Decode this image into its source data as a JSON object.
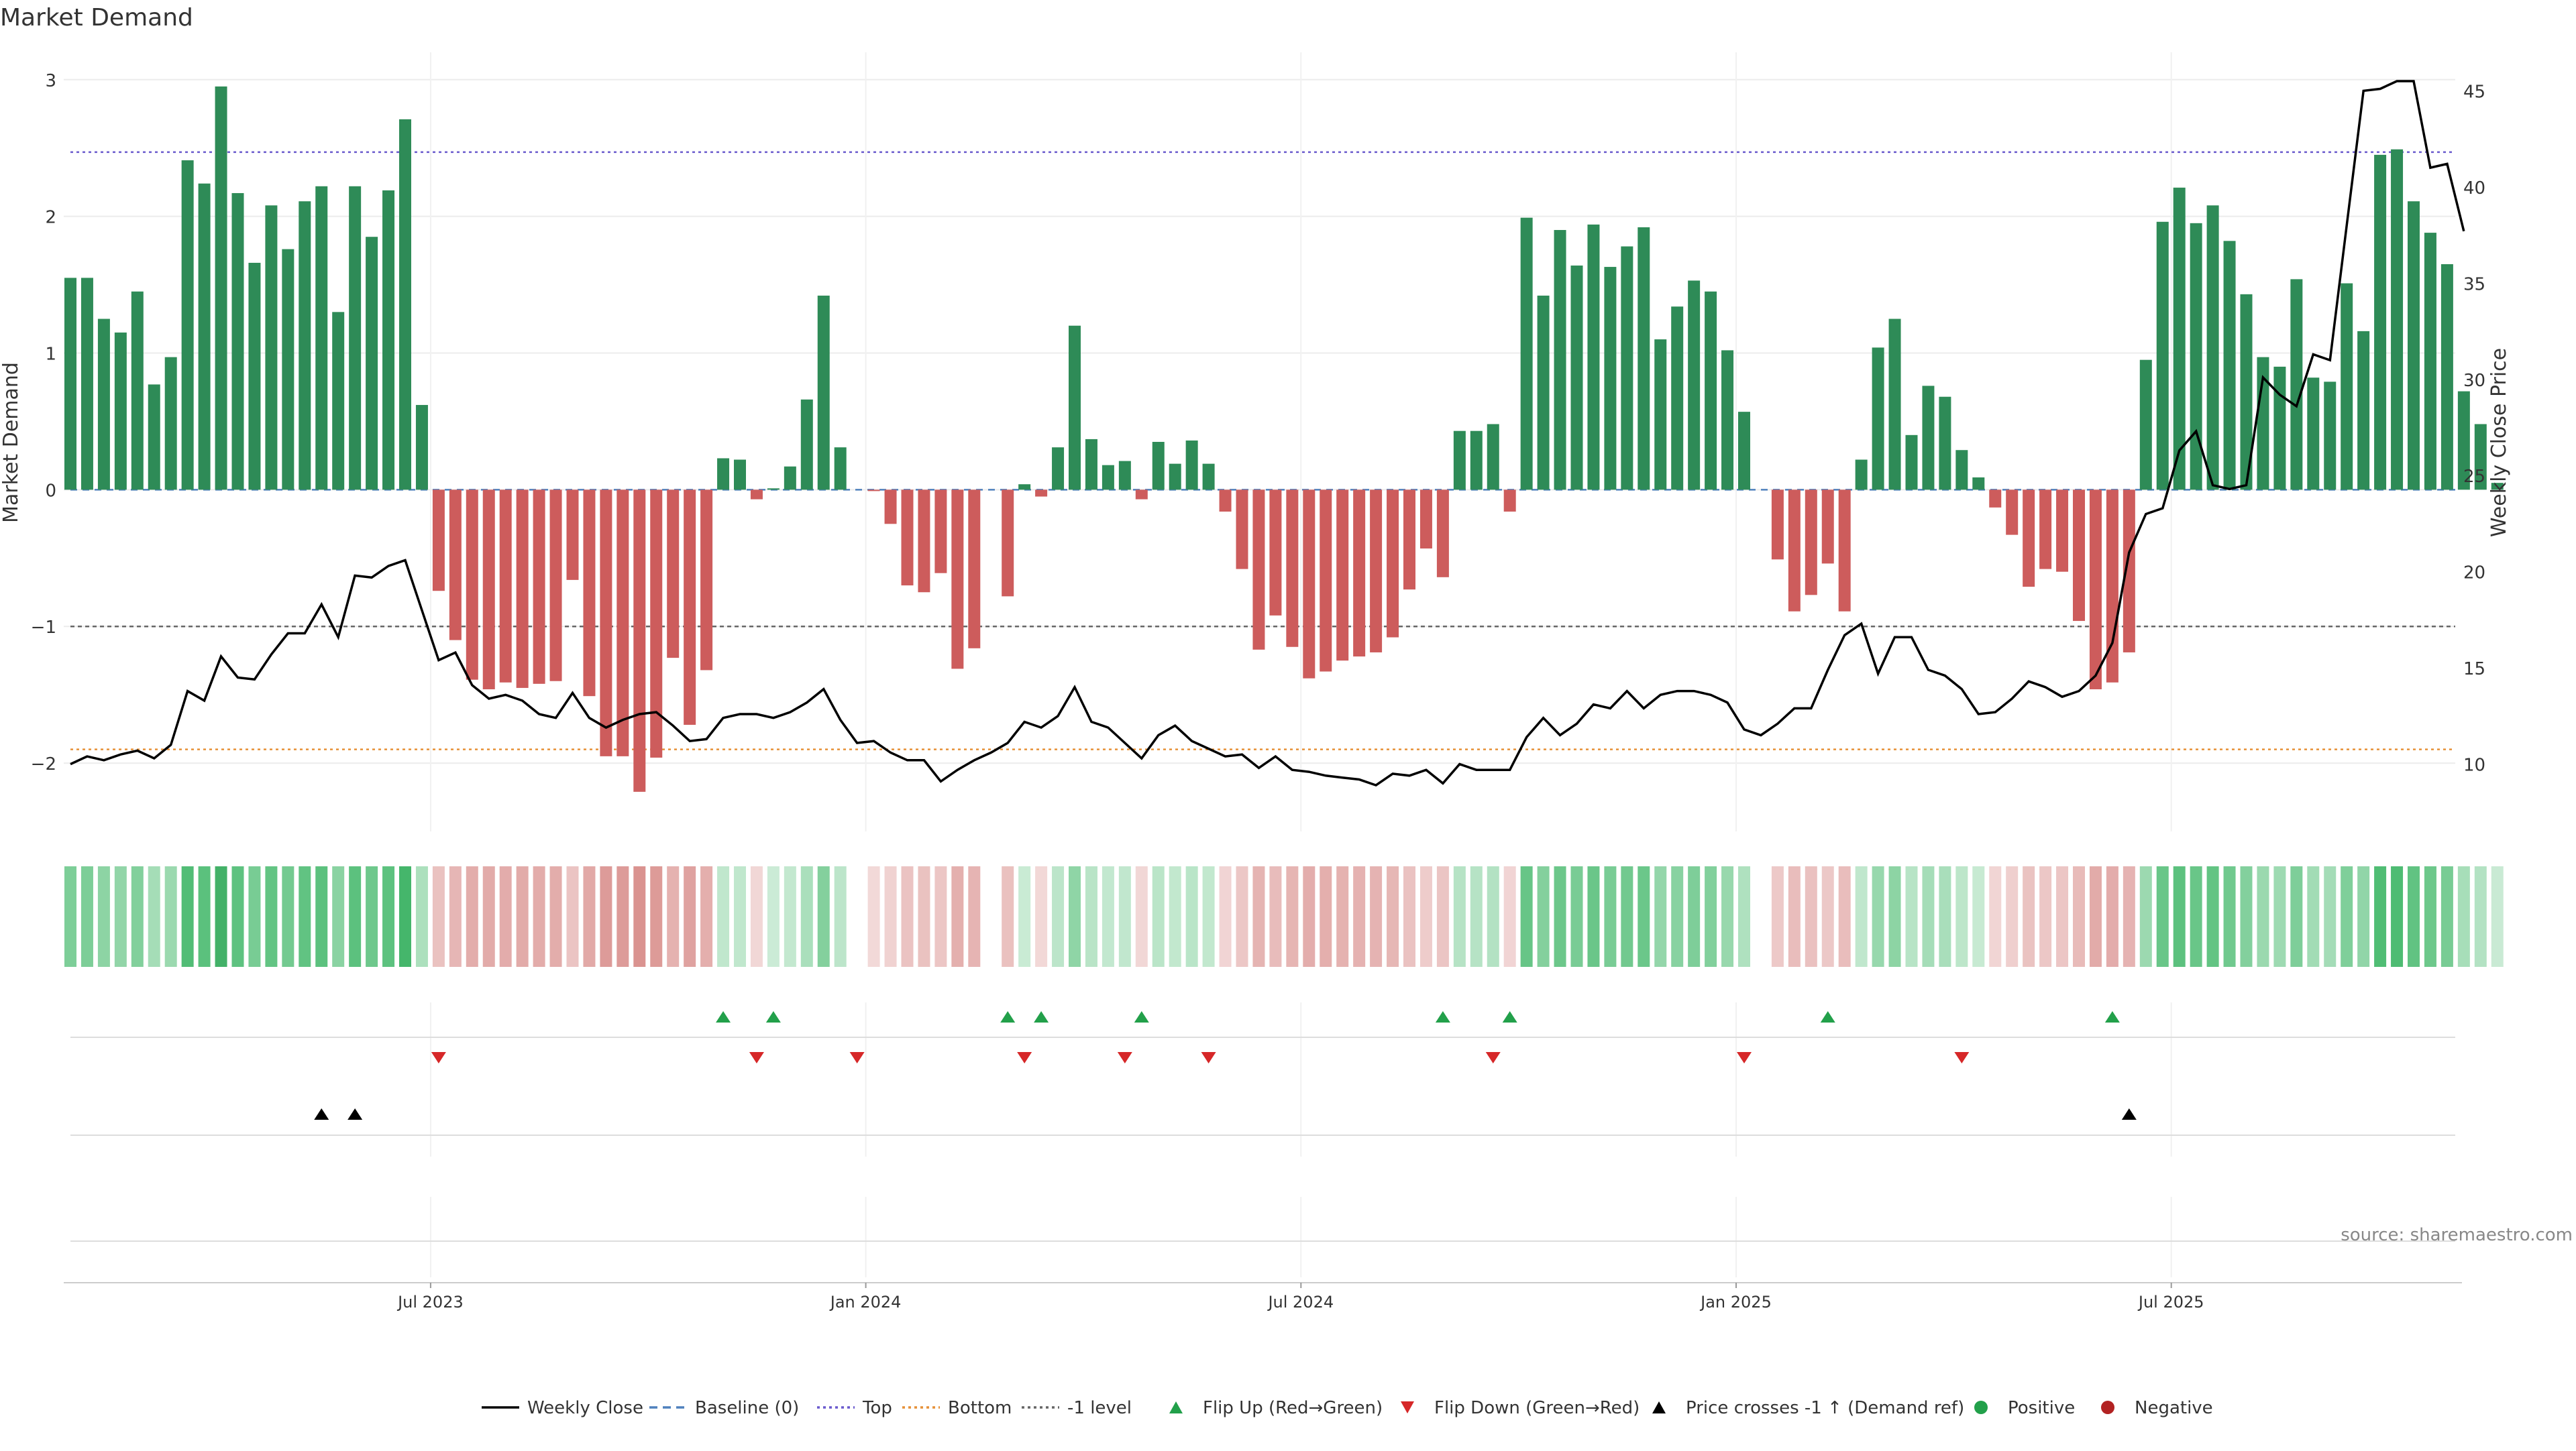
{
  "title": "Market Demand",
  "source": "source: sharemaestro.com",
  "colors": {
    "positive": "#2e8b57",
    "negative": "#cd5c5c",
    "price": "#000000",
    "top": "#6a5acd",
    "bottom": "#e69138",
    "minus_one": "#666666",
    "baseline": "#4f81bd",
    "flip_up": "#22a04a",
    "flip_down": "#d62728",
    "cross": "#000000",
    "grid": "#ececec"
  },
  "chart_data": {
    "type": "bar",
    "title": "Market Demand",
    "ylabel": "Market Demand",
    "y2label": "Weekly Close Price",
    "ylim": [
      -2.5,
      3.2
    ],
    "y2lim": [
      6.5,
      47
    ],
    "yticks": [
      3,
      2,
      1,
      0,
      -1,
      -2
    ],
    "ytick_labels": [
      "3",
      "2",
      "1",
      "0",
      "−1",
      "−2"
    ],
    "y2ticks": [
      45,
      40,
      35,
      30,
      25,
      20,
      15,
      10
    ],
    "reference_lines": {
      "top": 2.47,
      "bottom": -1.9,
      "minus_one": -1,
      "baseline": 0
    },
    "x_tick_labels": [
      "Jul 2023",
      "Jan 2024",
      "Jul 2024",
      "Jan 2025",
      "Jul 2025"
    ],
    "x_tick_index": [
      22,
      48,
      74,
      100,
      126
    ],
    "demand": [
      1.55,
      1.55,
      1.25,
      1.15,
      1.45,
      0.77,
      0.97,
      2.41,
      2.24,
      2.95,
      2.17,
      1.66,
      2.08,
      1.76,
      2.11,
      2.22,
      1.3,
      2.22,
      1.85,
      2.19,
      2.71,
      0.62,
      -0.74,
      -1.1,
      -1.39,
      -1.46,
      -1.41,
      -1.45,
      -1.42,
      -1.4,
      -0.66,
      -1.51,
      -1.95,
      -1.95,
      -2.21,
      -1.96,
      -1.23,
      -1.72,
      -1.32,
      0.23,
      0.22,
      -0.07,
      0.01,
      0.17,
      0.66,
      1.42,
      0.31,
      0.0,
      -0.01,
      -0.25,
      -0.7,
      -0.75,
      -0.61,
      -1.31,
      -1.16,
      0.0,
      -0.78,
      0.04,
      -0.05,
      0.31,
      1.2,
      0.37,
      0.18,
      0.21,
      -0.07,
      0.35,
      0.19,
      0.36,
      0.19,
      -0.16,
      -0.58,
      -1.17,
      -0.92,
      -1.15,
      -1.38,
      -1.33,
      -1.25,
      -1.22,
      -1.19,
      -1.08,
      -0.73,
      -0.43,
      -0.64,
      0.43,
      0.43,
      0.48,
      -0.16,
      1.99,
      1.42,
      1.9,
      1.64,
      1.94,
      1.63,
      1.78,
      1.92,
      1.1,
      1.34,
      1.53,
      1.45,
      1.02,
      0.57,
      0.0,
      -0.51,
      -0.89,
      -0.77,
      -0.54,
      -0.89,
      0.22,
      1.04,
      1.25,
      0.4,
      0.76,
      0.68,
      0.29,
      0.09,
      -0.13,
      -0.33,
      -0.71,
      -0.58,
      -0.6,
      -0.96,
      -1.46,
      -1.41,
      -1.19,
      0.95,
      1.96,
      2.21,
      1.95,
      2.08,
      1.82,
      1.43,
      0.97,
      0.9,
      1.54,
      0.82,
      0.79,
      1.51,
      1.16,
      2.45,
      2.49,
      2.11,
      1.88,
      1.65,
      0.72,
      0.48,
      0.05
    ],
    "weekly_close": [
      10.0,
      10.4,
      10.2,
      10.5,
      10.7,
      10.3,
      11.0,
      13.8,
      13.3,
      15.6,
      14.5,
      14.4,
      15.7,
      16.8,
      16.8,
      18.3,
      16.6,
      19.8,
      19.7,
      20.3,
      20.6,
      18.0,
      15.4,
      15.8,
      14.1,
      13.4,
      13.6,
      13.3,
      12.6,
      12.4,
      13.7,
      12.4,
      11.9,
      12.3,
      12.6,
      12.7,
      12.0,
      11.2,
      11.3,
      12.4,
      12.6,
      12.6,
      12.4,
      12.7,
      13.2,
      13.9,
      12.3,
      11.1,
      11.2,
      10.6,
      10.2,
      10.2,
      9.1,
      9.7,
      10.2,
      10.6,
      11.1,
      12.2,
      11.9,
      12.5,
      14.0,
      12.2,
      11.9,
      11.1,
      10.3,
      11.5,
      12.0,
      11.2,
      10.8,
      10.4,
      10.5,
      9.8,
      10.4,
      9.7,
      9.6,
      9.4,
      9.3,
      9.2,
      8.9,
      9.5,
      9.4,
      9.7,
      9.0,
      10.0,
      9.7,
      9.7,
      9.7,
      11.4,
      12.4,
      11.5,
      12.1,
      13.1,
      12.9,
      13.8,
      12.9,
      13.6,
      13.8,
      13.8,
      13.6,
      13.2,
      11.8,
      11.5,
      12.1,
      12.9,
      12.9,
      14.9,
      16.7,
      17.3,
      14.7,
      16.6,
      16.6,
      14.9,
      14.6,
      13.9,
      12.6,
      12.7,
      13.4,
      14.3,
      14.0,
      13.5,
      13.8,
      14.6,
      16.3,
      21.0,
      23.0,
      23.3,
      26.3,
      27.3,
      24.5,
      24.3,
      24.5,
      30.1,
      29.2,
      28.6,
      31.3,
      31.0,
      38.0,
      45.0,
      45.1,
      45.5,
      45.5,
      41.0,
      41.2,
      37.7
    ],
    "flip_up_index": [
      39,
      42,
      56,
      58,
      64,
      82,
      86,
      105,
      122
    ],
    "flip_down_index": [
      22,
      41,
      47,
      57,
      63,
      68,
      85,
      100,
      113
    ],
    "price_cross_up_index": [
      15,
      17,
      123
    ]
  },
  "legend": [
    {
      "label": "Weekly Close",
      "kind": "line-solid",
      "color": "#000000"
    },
    {
      "label": "Baseline (0)",
      "kind": "line-dash",
      "color": "#4f81bd"
    },
    {
      "label": "Top",
      "kind": "line-dot",
      "color": "#6a5acd"
    },
    {
      "label": "Bottom",
      "kind": "line-dot",
      "color": "#e69138"
    },
    {
      "label": "-1 level",
      "kind": "line-dot",
      "color": "#666666"
    },
    {
      "label": "Flip Up (Red→Green)",
      "kind": "tri-up",
      "color": "#22a04a"
    },
    {
      "label": "Flip Down (Green→Red)",
      "kind": "tri-down",
      "color": "#d62728"
    },
    {
      "label": "Price crosses -1 ↑ (Demand ref)",
      "kind": "tri-up",
      "color": "#000000"
    },
    {
      "label": "Positive",
      "kind": "dot",
      "color": "#22a04a"
    },
    {
      "label": "Negative",
      "kind": "dot",
      "color": "#b22222"
    }
  ]
}
